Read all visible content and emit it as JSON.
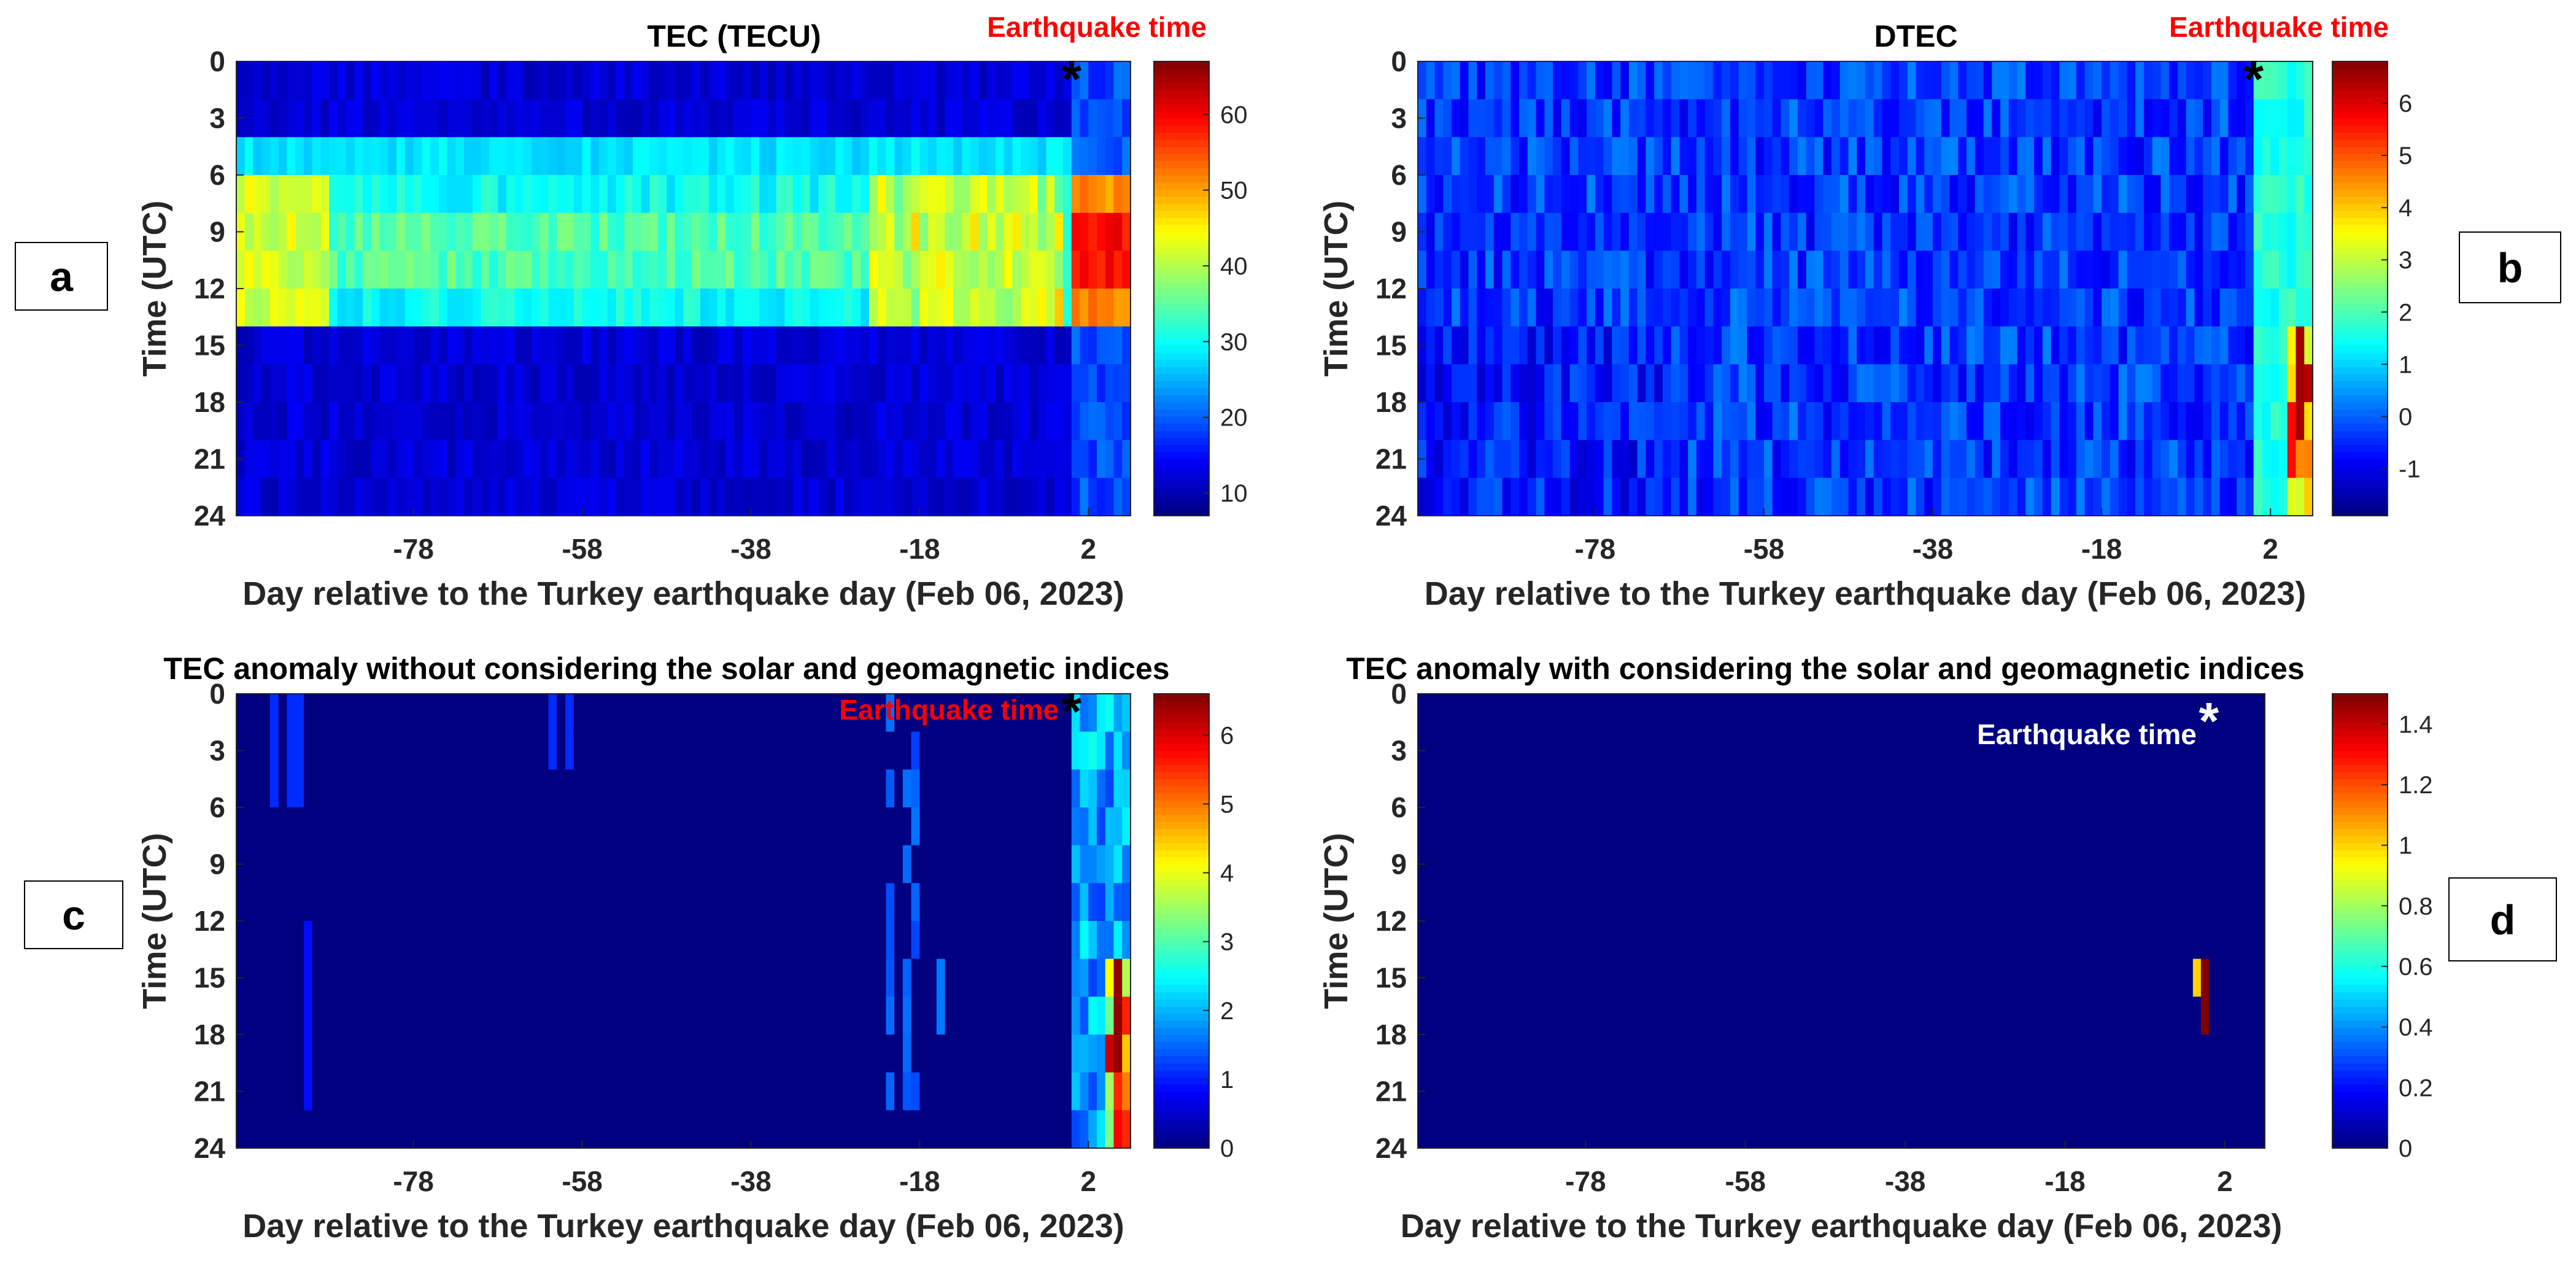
{
  "figure": {
    "xlabel": "Day relative to the Turkey earthquake day (Feb 06, 2023)",
    "ylabel": "Time (UTC)"
  },
  "chart_data": [
    {
      "type": "heatmap",
      "panel_label": "a",
      "title": "TEC (TECU)",
      "annotation": "Earthquake time",
      "annotation_color": "#ff0000",
      "marker": "*",
      "marker_color": "#000000",
      "marker_position": {
        "day": 0,
        "hour": 0.5
      },
      "xlabel": "Day relative to the Turkey earthquake day (Feb 06, 2023)",
      "ylabel": "Time (UTC)",
      "xlim": [
        -99,
        7
      ],
      "ylim": [
        0,
        24
      ],
      "xticks": [
        -78,
        -58,
        -38,
        -18,
        2
      ],
      "yticks": [
        0,
        3,
        6,
        9,
        12,
        15,
        18,
        21,
        24
      ],
      "clim": [
        7,
        67
      ],
      "colorbar_ticks": [
        10,
        20,
        30,
        40,
        50,
        60
      ],
      "colormap": "jet",
      "description": "Bi-hourly vertical TEC: about 8-18 TECU at night (14-24 and 0-4 UTC), 25-45 TECU during daytime (6-14 UTC), rising to 55-67 TECU at 6-14 UTC after the earthquake day."
    },
    {
      "type": "heatmap",
      "panel_label": "b",
      "title": "DTEC",
      "annotation": "Earthquake time",
      "annotation_color": "#ff0000",
      "marker": "*",
      "marker_color": "#000000",
      "marker_position": {
        "day": 0,
        "hour": 0.5
      },
      "xlabel": "Day relative to the Turkey earthquake day (Feb 06, 2023)",
      "ylabel": "Time (UTC)",
      "xlim": [
        -99,
        7
      ],
      "ylim": [
        0,
        24
      ],
      "xticks": [
        -78,
        -58,
        -38,
        -18,
        2
      ],
      "yticks": [
        0,
        3,
        6,
        9,
        12,
        15,
        18,
        21,
        24
      ],
      "clim": [
        -1.9,
        6.8
      ],
      "colorbar_ticks": [
        -1,
        0,
        1,
        2,
        3,
        4,
        5,
        6
      ],
      "colormap": "jet",
      "description": "Differential TEC mostly between -1.5 and 1 before the earthquake, rising to 1-2 after it, with a peak of about 6.5 around 16-24 UTC on days 4-6."
    },
    {
      "type": "heatmap",
      "panel_label": "c",
      "title": "TEC anomaly without considering the solar and geomagnetic indices",
      "annotation": "Earthquake time",
      "annotation_color": "#ff0000",
      "marker": "*",
      "marker_color": "#000000",
      "marker_position": {
        "day": 0,
        "hour": 0.5
      },
      "xlabel": "Day relative to the Turkey earthquake day (Feb 06, 2023)",
      "ylabel": "Time (UTC)",
      "xlim": [
        -99,
        7
      ],
      "ylim": [
        0,
        24
      ],
      "xticks": [
        -78,
        -58,
        -38,
        -18,
        2
      ],
      "yticks": [
        0,
        3,
        6,
        9,
        12,
        15,
        18,
        21,
        24
      ],
      "clim": [
        0,
        6.6
      ],
      "colorbar_ticks": [
        0,
        1,
        2,
        3,
        4,
        5,
        6
      ],
      "colormap": "jet",
      "description": "Mostly zero; scattered anomalies of about 1 before the earthquake (days -95 to -92, -64, -23 to -19), and anomalies of 1-6.5 on days 0 to 6."
    },
    {
      "type": "heatmap",
      "panel_label": "d",
      "title": "TEC anomaly with considering the solar and geomagnetic indices",
      "annotation": "Earthquake time",
      "annotation_color": "#ffffff",
      "marker": "*",
      "marker_color": "#ffffff",
      "marker_position": {
        "day": 0,
        "hour": 1
      },
      "xlabel": "Day relative to the Turkey earthquake day (Feb 06, 2023)",
      "ylabel": "Time (UTC)",
      "xlim": [
        -99,
        7
      ],
      "ylim": [
        0,
        24
      ],
      "xticks": [
        -78,
        -58,
        -38,
        -18,
        2
      ],
      "yticks": [
        0,
        3,
        6,
        9,
        12,
        15,
        18,
        21,
        24
      ],
      "clim": [
        0,
        1.5
      ],
      "colorbar_ticks": [
        0,
        0.2,
        0.4,
        0.6,
        0.8,
        1,
        1.2,
        1.4
      ],
      "colormap": "jet",
      "description": "Zero everywhere except a few cells just before the earthquake day between 14 and 18 UTC.",
      "nonzero_cells": [
        {
          "day": -2,
          "hour_start": 14,
          "hour_end": 16,
          "value": 1.0
        },
        {
          "day": -1,
          "hour_start": 14,
          "hour_end": 16,
          "value": 1.5
        },
        {
          "day": -1,
          "hour_start": 16,
          "hour_end": 18,
          "value": 1.5
        }
      ]
    }
  ]
}
